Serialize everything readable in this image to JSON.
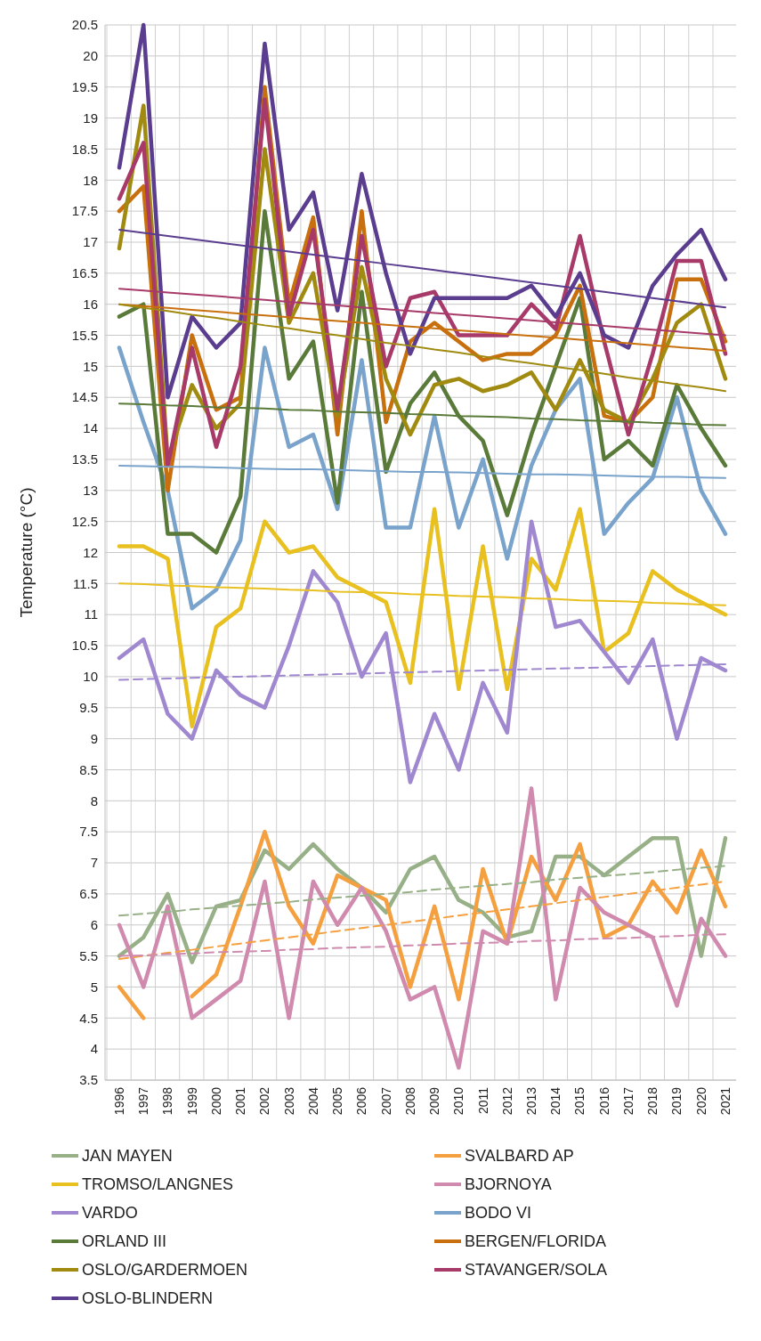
{
  "chart_data": {
    "type": "line",
    "ylabel": "Temperature (°C)",
    "categories": [
      "1996",
      "1997",
      "1998",
      "1999",
      "2000",
      "2001",
      "2002",
      "2003",
      "2004",
      "2005",
      "2006",
      "2007",
      "2008",
      "2009",
      "2010",
      "2011",
      "2012",
      "2013",
      "2014",
      "2015",
      "2016",
      "2017",
      "2018",
      "2019",
      "2020",
      "2021"
    ],
    "ylim": [
      3.5,
      20.5
    ],
    "yticks": [
      3.5,
      4,
      4.5,
      5,
      5.5,
      6,
      6.5,
      7,
      7.5,
      8,
      8.5,
      9,
      9.5,
      10,
      10.5,
      11,
      11.5,
      12,
      12.5,
      13,
      13.5,
      14,
      14.5,
      15,
      15.5,
      16,
      16.5,
      17,
      17.5,
      18,
      18.5,
      19,
      19.5,
      20,
      20.5
    ],
    "grid": true,
    "legend": "bottom",
    "marker": "none",
    "series": [
      {
        "name": "JAN MAYEN",
        "color": "#98b088",
        "values": [
          5.5,
          5.8,
          6.5,
          5.4,
          6.3,
          6.4,
          7.2,
          6.9,
          7.3,
          6.9,
          6.6,
          6.2,
          6.9,
          7.1,
          6.4,
          6.2,
          5.8,
          5.9,
          7.1,
          7.1,
          6.8,
          7.1,
          7.4,
          7.4,
          5.5,
          7.4
        ]
      },
      {
        "name": "SVALBARD AP",
        "color": "#f5a040",
        "values": [
          5.0,
          4.5,
          null,
          4.85,
          5.2,
          6.3,
          7.5,
          6.3,
          5.7,
          6.8,
          6.6,
          6.4,
          5.0,
          6.3,
          4.8,
          6.9,
          5.7,
          7.1,
          6.4,
          7.3,
          5.8,
          6.0,
          6.7,
          6.2,
          7.2,
          6.3
        ]
      },
      {
        "name": "TROMSO/LANGNES",
        "color": "#e8c020",
        "values": [
          12.1,
          12.1,
          11.9,
          9.2,
          10.8,
          11.1,
          12.5,
          12.0,
          12.1,
          11.6,
          11.4,
          11.2,
          9.9,
          12.7,
          9.8,
          12.1,
          9.8,
          11.9,
          11.4,
          12.7,
          10.4,
          10.7,
          11.7,
          11.4,
          11.2,
          11.0
        ]
      },
      {
        "name": "BJORNOYA",
        "color": "#d08aae",
        "values": [
          6.0,
          5.0,
          6.3,
          4.5,
          4.8,
          5.1,
          6.7,
          4.5,
          6.7,
          6.0,
          6.6,
          5.9,
          4.8,
          5.0,
          3.7,
          5.9,
          5.7,
          8.2,
          4.8,
          6.6,
          6.2,
          6.0,
          5.8,
          4.7,
          6.1,
          5.5
        ]
      },
      {
        "name": "VARDO",
        "color": "#a088d0",
        "values": [
          10.3,
          10.6,
          9.4,
          9.0,
          10.1,
          9.7,
          9.5,
          10.5,
          11.7,
          11.2,
          10.0,
          10.7,
          8.3,
          9.4,
          8.5,
          9.9,
          9.1,
          12.5,
          10.8,
          10.9,
          10.4,
          9.9,
          10.6,
          9.0,
          10.3,
          10.1
        ]
      },
      {
        "name": "BODO VI",
        "color": "#7aa3cc",
        "values": [
          15.3,
          14.1,
          13.0,
          11.1,
          11.4,
          12.2,
          15.3,
          13.7,
          13.9,
          12.7,
          15.1,
          12.4,
          12.4,
          14.2,
          12.4,
          13.5,
          11.9,
          13.4,
          14.3,
          14.8,
          12.3,
          12.8,
          13.2,
          14.5,
          13.0,
          12.3
        ]
      },
      {
        "name": "ORLAND III",
        "color": "#5a7a3a",
        "values": [
          15.8,
          16.0,
          12.3,
          12.3,
          12.0,
          12.9,
          17.5,
          14.8,
          15.4,
          12.8,
          16.2,
          13.3,
          14.4,
          14.9,
          14.2,
          13.8,
          12.6,
          13.9,
          15.0,
          16.1,
          13.5,
          13.8,
          13.4,
          14.7,
          14.0,
          13.4
        ]
      },
      {
        "name": "BERGEN/FLORIDA",
        "color": "#c8700e",
        "values": [
          17.5,
          17.9,
          13.0,
          15.5,
          14.3,
          14.5,
          19.5,
          16.0,
          17.4,
          13.9,
          17.5,
          14.1,
          15.4,
          15.7,
          15.4,
          15.1,
          15.2,
          15.2,
          15.5,
          16.3,
          14.2,
          14.1,
          14.5,
          16.4,
          16.4,
          15.4
        ]
      },
      {
        "name": "OSLO/GARDERMOEN",
        "color": "#a08a10",
        "values": [
          16.9,
          19.2,
          13.5,
          14.7,
          14.0,
          14.4,
          18.5,
          15.7,
          16.5,
          14.2,
          16.6,
          14.8,
          13.9,
          14.7,
          14.8,
          14.6,
          14.7,
          14.9,
          14.3,
          15.1,
          14.3,
          14.1,
          14.8,
          15.7,
          16.0,
          14.8
        ]
      },
      {
        "name": "STAVANGER/SOLA",
        "color": "#a83a6a",
        "values": [
          17.7,
          18.6,
          13.4,
          15.3,
          13.7,
          15.0,
          19.3,
          15.8,
          17.2,
          14.3,
          17.1,
          15.0,
          16.1,
          16.2,
          15.5,
          15.5,
          15.5,
          16.0,
          15.6,
          17.1,
          15.4,
          13.9,
          15.2,
          16.7,
          16.7,
          15.2
        ]
      },
      {
        "name": "OSLO-BLINDERN",
        "color": "#5b3d8f",
        "values": [
          18.2,
          20.5,
          14.5,
          15.8,
          15.3,
          15.7,
          20.2,
          17.2,
          17.8,
          15.9,
          18.1,
          16.5,
          15.2,
          16.1,
          16.1,
          16.1,
          16.1,
          16.3,
          15.8,
          16.5,
          15.5,
          15.3,
          16.3,
          16.8,
          17.2,
          16.4
        ]
      },
      {
        "type": "line",
        "color": "#98b088",
        "line_style": "dashed",
        "values": [
          6.15,
          6.18,
          6.21,
          6.25,
          6.28,
          6.31,
          6.34,
          6.37,
          6.41,
          6.44,
          6.47,
          6.5,
          6.53,
          6.57,
          6.6,
          6.63,
          6.66,
          6.69,
          6.73,
          6.76,
          6.79,
          6.82,
          6.85,
          6.89,
          6.92,
          6.95
        ]
      },
      {
        "type": "line",
        "color": "#f5a040",
        "line_style": "dashed",
        "values": [
          5.45,
          5.5,
          5.55,
          5.6,
          5.65,
          5.7,
          5.75,
          5.8,
          5.85,
          5.9,
          5.95,
          6.0,
          6.05,
          6.1,
          6.15,
          6.2,
          6.25,
          6.3,
          6.35,
          6.4,
          6.45,
          6.5,
          6.55,
          6.6,
          6.65,
          6.7
        ]
      },
      {
        "type": "line",
        "color": "#e8c020",
        "line_style": "solid",
        "values": [
          11.5,
          11.49,
          11.47,
          11.46,
          11.44,
          11.43,
          11.42,
          11.4,
          11.39,
          11.37,
          11.36,
          11.35,
          11.33,
          11.32,
          11.3,
          11.29,
          11.28,
          11.26,
          11.25,
          11.23,
          11.22,
          11.21,
          11.19,
          11.18,
          11.16,
          11.15
        ]
      },
      {
        "type": "line",
        "color": "#d08aae",
        "line_style": "dashed",
        "values": [
          5.5,
          5.51,
          5.53,
          5.54,
          5.56,
          5.57,
          5.58,
          5.6,
          5.61,
          5.63,
          5.64,
          5.65,
          5.67,
          5.68,
          5.7,
          5.71,
          5.72,
          5.74,
          5.75,
          5.77,
          5.78,
          5.79,
          5.81,
          5.82,
          5.84,
          5.85
        ]
      },
      {
        "type": "line",
        "color": "#a088d0",
        "line_style": "dashed",
        "values": [
          9.95,
          9.96,
          9.97,
          9.98,
          9.99,
          10.0,
          10.01,
          10.02,
          10.03,
          10.04,
          10.05,
          10.06,
          10.07,
          10.08,
          10.09,
          10.1,
          10.11,
          10.12,
          10.13,
          10.14,
          10.15,
          10.16,
          10.17,
          10.18,
          10.19,
          10.2
        ]
      },
      {
        "type": "line",
        "color": "#7aa3cc",
        "line_style": "solid",
        "values": [
          13.4,
          13.39,
          13.38,
          13.38,
          13.37,
          13.36,
          13.35,
          13.34,
          13.34,
          13.33,
          13.32,
          13.31,
          13.3,
          13.3,
          13.29,
          13.28,
          13.27,
          13.26,
          13.26,
          13.25,
          13.24,
          13.23,
          13.22,
          13.22,
          13.21,
          13.2
        ]
      },
      {
        "type": "line",
        "color": "#5a7a3a",
        "line_style": "solid",
        "values": [
          14.4,
          14.39,
          14.37,
          14.36,
          14.34,
          14.33,
          14.32,
          14.3,
          14.29,
          14.27,
          14.26,
          14.25,
          14.23,
          14.22,
          14.2,
          14.19,
          14.18,
          14.16,
          14.15,
          14.13,
          14.12,
          14.11,
          14.09,
          14.08,
          14.06,
          14.05
        ]
      },
      {
        "type": "line",
        "color": "#c8700e",
        "line_style": "solid",
        "values": [
          16.0,
          15.97,
          15.94,
          15.91,
          15.88,
          15.85,
          15.82,
          15.79,
          15.76,
          15.73,
          15.7,
          15.67,
          15.64,
          15.61,
          15.58,
          15.55,
          15.52,
          15.49,
          15.46,
          15.43,
          15.4,
          15.37,
          15.34,
          15.31,
          15.28,
          15.25
        ]
      },
      {
        "type": "line",
        "color": "#a08a10",
        "line_style": "solid",
        "values": [
          16.0,
          15.94,
          15.89,
          15.83,
          15.78,
          15.72,
          15.66,
          15.61,
          15.55,
          15.5,
          15.44,
          15.38,
          15.33,
          15.27,
          15.22,
          15.16,
          15.1,
          15.05,
          14.99,
          14.94,
          14.88,
          14.82,
          14.77,
          14.71,
          14.66,
          14.6
        ]
      },
      {
        "type": "line",
        "color": "#a83a6a",
        "line_style": "solid",
        "values": [
          16.25,
          16.22,
          16.19,
          16.16,
          16.13,
          16.1,
          16.07,
          16.04,
          16.01,
          15.98,
          15.95,
          15.92,
          15.89,
          15.86,
          15.83,
          15.8,
          15.77,
          15.74,
          15.71,
          15.68,
          15.65,
          15.62,
          15.59,
          15.56,
          15.53,
          15.5
        ]
      },
      {
        "type": "line",
        "color": "#5b3d8f",
        "line_style": "solid",
        "values": [
          17.2,
          17.15,
          17.1,
          17.05,
          17.0,
          16.95,
          16.9,
          16.85,
          16.8,
          16.75,
          16.7,
          16.65,
          16.6,
          16.55,
          16.5,
          16.45,
          16.4,
          16.35,
          16.3,
          16.25,
          16.2,
          16.15,
          16.1,
          16.05,
          16.0,
          15.95
        ]
      }
    ]
  }
}
